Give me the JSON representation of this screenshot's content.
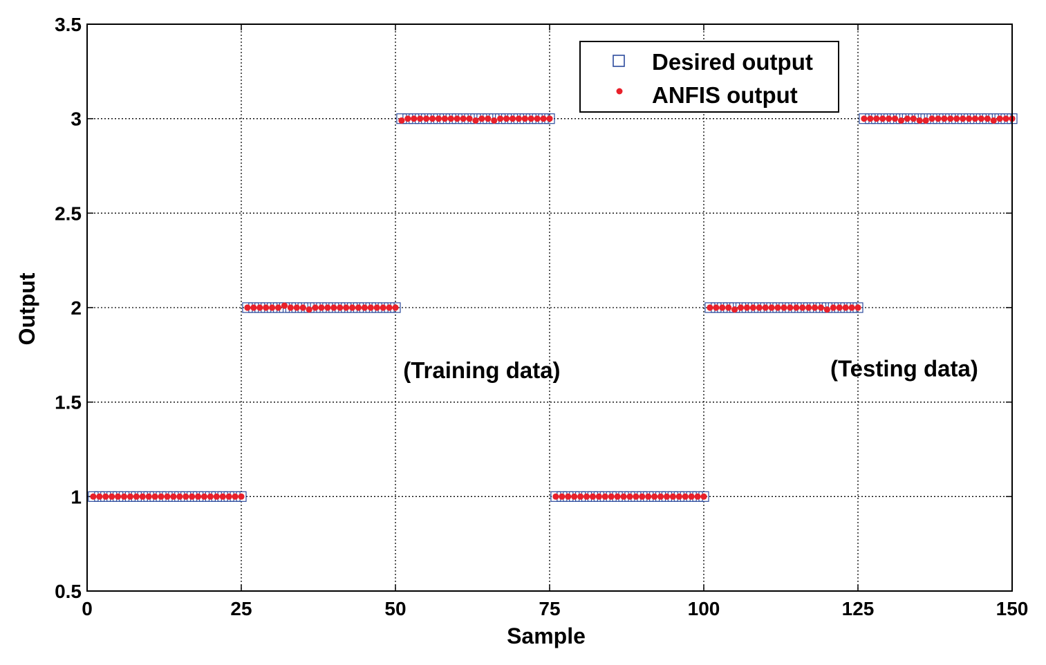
{
  "chart_data": {
    "type": "scatter",
    "title": "",
    "xlabel": "Sample",
    "ylabel": "Output",
    "xlim": [
      0,
      150
    ],
    "ylim": [
      0.5,
      3.5
    ],
    "xticks": [
      "0",
      "25",
      "50",
      "75",
      "100",
      "125",
      "150"
    ],
    "yticks": [
      "0.5",
      "1",
      "1.5",
      "2",
      "2.5",
      "3",
      "3.5"
    ],
    "grid": true,
    "legend": {
      "placement": "top-right",
      "entries": [
        "Desired output",
        "ANFIS output"
      ]
    },
    "annotations": [
      {
        "text": "(Training data)",
        "x": 64,
        "y": 1.67
      },
      {
        "text": "(Testing data)",
        "x": 132.5,
        "y": 1.68
      }
    ],
    "series": [
      {
        "name": "Desired output",
        "marker": "square",
        "color": "#2b4a9c",
        "segments": [
          {
            "x_start": 1,
            "x_end": 25,
            "y": 1
          },
          {
            "x_start": 26,
            "x_end": 50,
            "y": 2
          },
          {
            "x_start": 51,
            "x_end": 75,
            "y": 3
          },
          {
            "x_start": 76,
            "x_end": 100,
            "y": 1
          },
          {
            "x_start": 101,
            "x_end": 125,
            "y": 2
          },
          {
            "x_start": 126,
            "x_end": 150,
            "y": 3
          }
        ]
      },
      {
        "name": "ANFIS output",
        "marker": "dot",
        "color": "#e8202a",
        "x_start": 1,
        "values": [
          1,
          1,
          1,
          1,
          1,
          1,
          1,
          1,
          1,
          1,
          1,
          1,
          1,
          1,
          1,
          1,
          1,
          1,
          1,
          1,
          1,
          1,
          1,
          1,
          1,
          2,
          2,
          2,
          2,
          2,
          2,
          2.01,
          2,
          2,
          2,
          1.99,
          2,
          2,
          2,
          2,
          2,
          2,
          2,
          2,
          2,
          2,
          2,
          2,
          2,
          2,
          2.99,
          3,
          3,
          3,
          3,
          3,
          3,
          3,
          3,
          3,
          3,
          3,
          2.99,
          3,
          3,
          2.99,
          3,
          3,
          3,
          3,
          3,
          3,
          3,
          3,
          3,
          1,
          1,
          1,
          1,
          1,
          1,
          1,
          1,
          1,
          1,
          1,
          1,
          1,
          1,
          1,
          1,
          1,
          1,
          1,
          1,
          1,
          1,
          1,
          1,
          1,
          2,
          2,
          2,
          2,
          1.99,
          2,
          2,
          2,
          2,
          2,
          2,
          2,
          2,
          2,
          2,
          2,
          2,
          2,
          2,
          1.99,
          2,
          2,
          2,
          2,
          2,
          3,
          3,
          3,
          3,
          3,
          3,
          2.99,
          3,
          3,
          2.99,
          2.99,
          3,
          3,
          3,
          3,
          3,
          3,
          3,
          3,
          3,
          3,
          2.99,
          3,
          3,
          3
        ]
      }
    ]
  }
}
